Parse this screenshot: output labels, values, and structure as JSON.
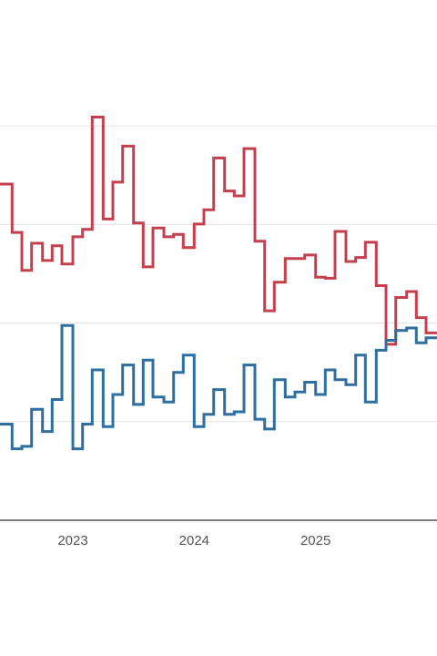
{
  "chart_data": {
    "type": "line",
    "step": true,
    "grid": true,
    "xlim": [
      2022.4,
      2026.0
    ],
    "ylim": [
      0,
      100
    ],
    "y_gridlines": [
      20,
      40,
      60,
      80
    ],
    "x_ticks": [
      {
        "value": 2023,
        "label": "2023"
      },
      {
        "value": 2024,
        "label": "2024"
      },
      {
        "value": 2025,
        "label": "2025"
      }
    ],
    "series": [
      {
        "color": "#c4404e",
        "x": [
          2022.4,
          2022.5,
          2022.58,
          2022.66,
          2022.75,
          2022.83,
          2022.91,
          2023.0,
          2023.08,
          2023.16,
          2023.25,
          2023.33,
          2023.41,
          2023.5,
          2023.58,
          2023.66,
          2023.75,
          2023.83,
          2023.91,
          2024.0,
          2024.08,
          2024.16,
          2024.25,
          2024.33,
          2024.41,
          2024.5,
          2024.58,
          2024.66,
          2024.75,
          2024.83,
          2024.91,
          2025.0,
          2025.08,
          2025.16,
          2025.25,
          2025.33,
          2025.41,
          2025.5,
          2025.58,
          2025.66,
          2025.75,
          2025.83,
          2025.91
        ],
        "values": [
          68.2,
          58.4,
          50.7,
          56.2,
          52.7,
          55.7,
          52.0,
          57.5,
          59.0,
          81.8,
          61.1,
          68.6,
          75.9,
          60.3,
          51.4,
          59.3,
          57.5,
          58.0,
          55.3,
          60.1,
          63.0,
          73.5,
          66.8,
          65.8,
          75.4,
          56.6,
          42.5,
          48.3,
          53.1,
          53.1,
          53.8,
          49.3,
          49.1,
          58.6,
          52.5,
          53.3,
          56.4,
          47.6,
          35.7,
          45.2,
          46.4,
          41.1,
          38.0
        ]
      },
      {
        "color": "#2f6f9f",
        "x": [
          2022.4,
          2022.5,
          2022.58,
          2022.66,
          2022.75,
          2022.83,
          2022.91,
          2023.0,
          2023.08,
          2023.16,
          2023.25,
          2023.33,
          2023.41,
          2023.5,
          2023.58,
          2023.66,
          2023.75,
          2023.83,
          2023.91,
          2024.0,
          2024.08,
          2024.16,
          2024.25,
          2024.33,
          2024.41,
          2024.5,
          2024.58,
          2024.66,
          2024.75,
          2024.83,
          2024.91,
          2025.0,
          2025.08,
          2025.16,
          2025.25,
          2025.33,
          2025.41,
          2025.5,
          2025.58,
          2025.66,
          2025.75,
          2025.83,
          2025.91
        ],
        "values": [
          19.5,
          14.5,
          15.0,
          22.5,
          18.0,
          24.5,
          39.5,
          14.5,
          19.5,
          30.5,
          19.0,
          25.5,
          31.5,
          23.5,
          32.5,
          25.0,
          24.0,
          30.0,
          33.5,
          19.0,
          21.5,
          26.5,
          21.5,
          22.0,
          31.5,
          20.5,
          18.5,
          28.5,
          25.0,
          26.0,
          28.0,
          25.5,
          30.5,
          28.5,
          27.5,
          33.5,
          24.0,
          34.5,
          36.5,
          38.5,
          39.0,
          36.0,
          37.0
        ]
      }
    ]
  }
}
